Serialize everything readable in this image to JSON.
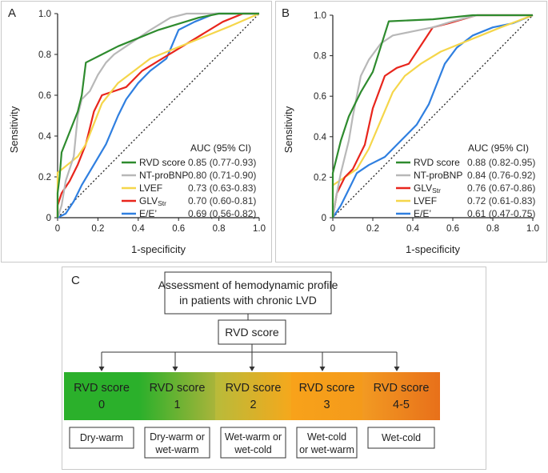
{
  "panels": {
    "A": {
      "label": "A",
      "ylabel": "Sensitivity",
      "xlabel": "1-specificity",
      "legend_header": "AUC (95% CI)"
    },
    "B": {
      "label": "B",
      "ylabel": "Sensitivity",
      "xlabel": "1-specificity",
      "legend_header": "AUC (95% CI)"
    }
  },
  "colors": {
    "rvd": "#2e8b2e",
    "ntprobnp": "#b8b8b8",
    "lvef": "#f5d64a",
    "glvstr": "#e8251c",
    "ee": "#2f7fe0",
    "diagonal": "#222222"
  },
  "chart_data": [
    {
      "panel": "A",
      "type": "line",
      "title": "",
      "xlabel": "1-specificity",
      "ylabel": "Sensitivity",
      "xlim": [
        0,
        1
      ],
      "ylim": [
        0,
        1
      ],
      "x_ticks": [
        "0",
        "0.2",
        "0.4",
        "0.6",
        "0.8",
        "1.0"
      ],
      "y_ticks": [
        "0",
        "0.2",
        "0.4",
        "0.6",
        "0.8",
        "1.0"
      ],
      "series": [
        {
          "name": "RVD score",
          "auc": "0.85 (0.77-0.93)",
          "color_key": "rvd",
          "points": [
            [
              0,
              0
            ],
            [
              0,
              0.12
            ],
            [
              0.01,
              0.2
            ],
            [
              0.02,
              0.32
            ],
            [
              0.06,
              0.42
            ],
            [
              0.1,
              0.52
            ],
            [
              0.12,
              0.6
            ],
            [
              0.14,
              0.76
            ],
            [
              0.3,
              0.84
            ],
            [
              0.5,
              0.92
            ],
            [
              0.7,
              0.98
            ],
            [
              0.8,
              1
            ],
            [
              1,
              1
            ]
          ]
        },
        {
          "name": "NT-proBNP",
          "sub": "",
          "auc": "0.80 (0.71-0.90)",
          "color_key": "ntprobnp",
          "points": [
            [
              0,
              0
            ],
            [
              0.02,
              0.06
            ],
            [
              0.04,
              0.18
            ],
            [
              0.08,
              0.3
            ],
            [
              0.1,
              0.5
            ],
            [
              0.12,
              0.58
            ],
            [
              0.16,
              0.62
            ],
            [
              0.2,
              0.7
            ],
            [
              0.24,
              0.76
            ],
            [
              0.28,
              0.8
            ],
            [
              0.34,
              0.84
            ],
            [
              0.4,
              0.88
            ],
            [
              0.46,
              0.92
            ],
            [
              0.56,
              0.98
            ],
            [
              0.64,
              1
            ],
            [
              1,
              1
            ]
          ]
        },
        {
          "name": "LVEF",
          "auc": "0.73 (0.63-0.83)",
          "color_key": "lvef",
          "points": [
            [
              0,
              0
            ],
            [
              0,
              0.22
            ],
            [
              0.05,
              0.26
            ],
            [
              0.1,
              0.3
            ],
            [
              0.14,
              0.36
            ],
            [
              0.18,
              0.46
            ],
            [
              0.22,
              0.56
            ],
            [
              0.3,
              0.66
            ],
            [
              0.38,
              0.72
            ],
            [
              0.46,
              0.78
            ],
            [
              0.56,
              0.82
            ],
            [
              0.66,
              0.86
            ],
            [
              0.76,
              0.9
            ],
            [
              0.86,
              0.94
            ],
            [
              1,
              1
            ]
          ]
        },
        {
          "name": "GLV",
          "sub": "Str",
          "auc": "0.70 (0.60-0.81)",
          "color_key": "glvstr",
          "points": [
            [
              0,
              0
            ],
            [
              0,
              0.06
            ],
            [
              0.02,
              0.12
            ],
            [
              0.06,
              0.18
            ],
            [
              0.1,
              0.26
            ],
            [
              0.14,
              0.36
            ],
            [
              0.18,
              0.52
            ],
            [
              0.22,
              0.6
            ],
            [
              0.34,
              0.64
            ],
            [
              0.42,
              0.72
            ],
            [
              0.52,
              0.78
            ],
            [
              0.62,
              0.84
            ],
            [
              0.72,
              0.9
            ],
            [
              0.82,
              0.96
            ],
            [
              0.92,
              1
            ],
            [
              1,
              1
            ]
          ]
        },
        {
          "name": "E/E’",
          "auc": "0.69 (0.56-0.82)",
          "color_key": "ee",
          "points": [
            [
              0,
              0
            ],
            [
              0.04,
              0.02
            ],
            [
              0.08,
              0.08
            ],
            [
              0.12,
              0.16
            ],
            [
              0.18,
              0.26
            ],
            [
              0.24,
              0.36
            ],
            [
              0.3,
              0.5
            ],
            [
              0.34,
              0.58
            ],
            [
              0.4,
              0.66
            ],
            [
              0.46,
              0.72
            ],
            [
              0.54,
              0.78
            ],
            [
              0.6,
              0.92
            ],
            [
              0.68,
              0.96
            ],
            [
              0.78,
              1
            ],
            [
              1,
              1
            ]
          ]
        }
      ]
    },
    {
      "panel": "B",
      "type": "line",
      "title": "",
      "xlabel": "1-specificity",
      "ylabel": "Sensitivity",
      "xlim": [
        0,
        1
      ],
      "ylim": [
        0,
        1
      ],
      "x_ticks": [
        "0",
        "0.2",
        "0.4",
        "0.6",
        "0.8",
        "1.0"
      ],
      "y_ticks": [
        "0",
        "0.2",
        "0.4",
        "0.6",
        "0.8",
        "1.0"
      ],
      "series": [
        {
          "name": "RVD score",
          "auc": "0.88 (0.82-0.95)",
          "color_key": "rvd",
          "points": [
            [
              0,
              0
            ],
            [
              0,
              0.22
            ],
            [
              0.04,
              0.38
            ],
            [
              0.08,
              0.5
            ],
            [
              0.14,
              0.62
            ],
            [
              0.2,
              0.72
            ],
            [
              0.28,
              0.97
            ],
            [
              0.5,
              0.98
            ],
            [
              0.7,
              1
            ],
            [
              1,
              1
            ]
          ]
        },
        {
          "name": "NT-proBNP",
          "auc": "0.84 (0.76-0.92)",
          "color_key": "ntprobnp",
          "points": [
            [
              0,
              0
            ],
            [
              0.02,
              0.12
            ],
            [
              0.04,
              0.22
            ],
            [
              0.08,
              0.38
            ],
            [
              0.1,
              0.5
            ],
            [
              0.14,
              0.7
            ],
            [
              0.18,
              0.78
            ],
            [
              0.24,
              0.86
            ],
            [
              0.3,
              0.9
            ],
            [
              0.4,
              0.92
            ],
            [
              0.5,
              0.94
            ],
            [
              0.6,
              0.97
            ],
            [
              0.72,
              1
            ],
            [
              1,
              1
            ]
          ]
        },
        {
          "name": "GLV",
          "sub": "Str",
          "auc": "0.76 (0.67-0.86)",
          "color_key": "glvstr",
          "points": [
            [
              0,
              0
            ],
            [
              0.02,
              0.12
            ],
            [
              0.06,
              0.2
            ],
            [
              0.1,
              0.24
            ],
            [
              0.16,
              0.36
            ],
            [
              0.2,
              0.54
            ],
            [
              0.26,
              0.7
            ],
            [
              0.32,
              0.74
            ],
            [
              0.38,
              0.76
            ],
            [
              0.46,
              0.88
            ],
            [
              0.5,
              0.94
            ],
            [
              0.58,
              0.96
            ],
            [
              0.72,
              1
            ],
            [
              1,
              1
            ]
          ]
        },
        {
          "name": "LVEF",
          "auc": "0.72 (0.61-0.83)",
          "color_key": "lvef",
          "points": [
            [
              0,
              0
            ],
            [
              0,
              0.16
            ],
            [
              0.06,
              0.2
            ],
            [
              0.12,
              0.24
            ],
            [
              0.18,
              0.34
            ],
            [
              0.24,
              0.48
            ],
            [
              0.3,
              0.62
            ],
            [
              0.36,
              0.7
            ],
            [
              0.44,
              0.76
            ],
            [
              0.54,
              0.82
            ],
            [
              0.64,
              0.86
            ],
            [
              0.74,
              0.9
            ],
            [
              0.84,
              0.94
            ],
            [
              1,
              1
            ]
          ]
        },
        {
          "name": "E/E’",
          "auc": "0.61 (0.47-0.75)",
          "color_key": "ee",
          "points": [
            [
              0,
              0
            ],
            [
              0.04,
              0.06
            ],
            [
              0.08,
              0.14
            ],
            [
              0.12,
              0.22
            ],
            [
              0.18,
              0.26
            ],
            [
              0.26,
              0.3
            ],
            [
              0.34,
              0.38
            ],
            [
              0.42,
              0.46
            ],
            [
              0.48,
              0.56
            ],
            [
              0.52,
              0.66
            ],
            [
              0.56,
              0.76
            ],
            [
              0.62,
              0.84
            ],
            [
              0.7,
              0.9
            ],
            [
              0.8,
              0.94
            ],
            [
              0.9,
              0.96
            ],
            [
              1,
              1
            ]
          ]
        }
      ]
    }
  ],
  "flowchart": {
    "label": "C",
    "top_box": {
      "line1": "Assessment of hemodynamic profile",
      "line2": "in patients with chronic LVD"
    },
    "score_box": "RVD score",
    "categories": [
      {
        "title": "RVD score",
        "value": "0",
        "outcome_line1": "Dry-warm",
        "outcome_line2": "",
        "grad_from": "#2bb02b",
        "grad_to": "#2bb02b"
      },
      {
        "title": "RVD score",
        "value": "1",
        "outcome_line1": "Dry-warm or",
        "outcome_line2": "wet-warm",
        "grad_from": "#2bb02b",
        "grad_to": "#a8b43a"
      },
      {
        "title": "RVD score",
        "value": "2",
        "outcome_line1": "Wet-warm or",
        "outcome_line2": "wet-cold",
        "grad_from": "#b8bb3a",
        "grad_to": "#f5a81c"
      },
      {
        "title": "RVD score",
        "value": "3",
        "outcome_line1": "Wet-cold",
        "outcome_line2": "or wet-warm",
        "grad_from": "#f8a21a",
        "grad_to": "#f49a1b"
      },
      {
        "title": "RVD score",
        "value": "4-5",
        "outcome_line1": "Wet-cold",
        "outcome_line2": "",
        "grad_from": "#f29a22",
        "grad_to": "#e8701a"
      }
    ]
  }
}
